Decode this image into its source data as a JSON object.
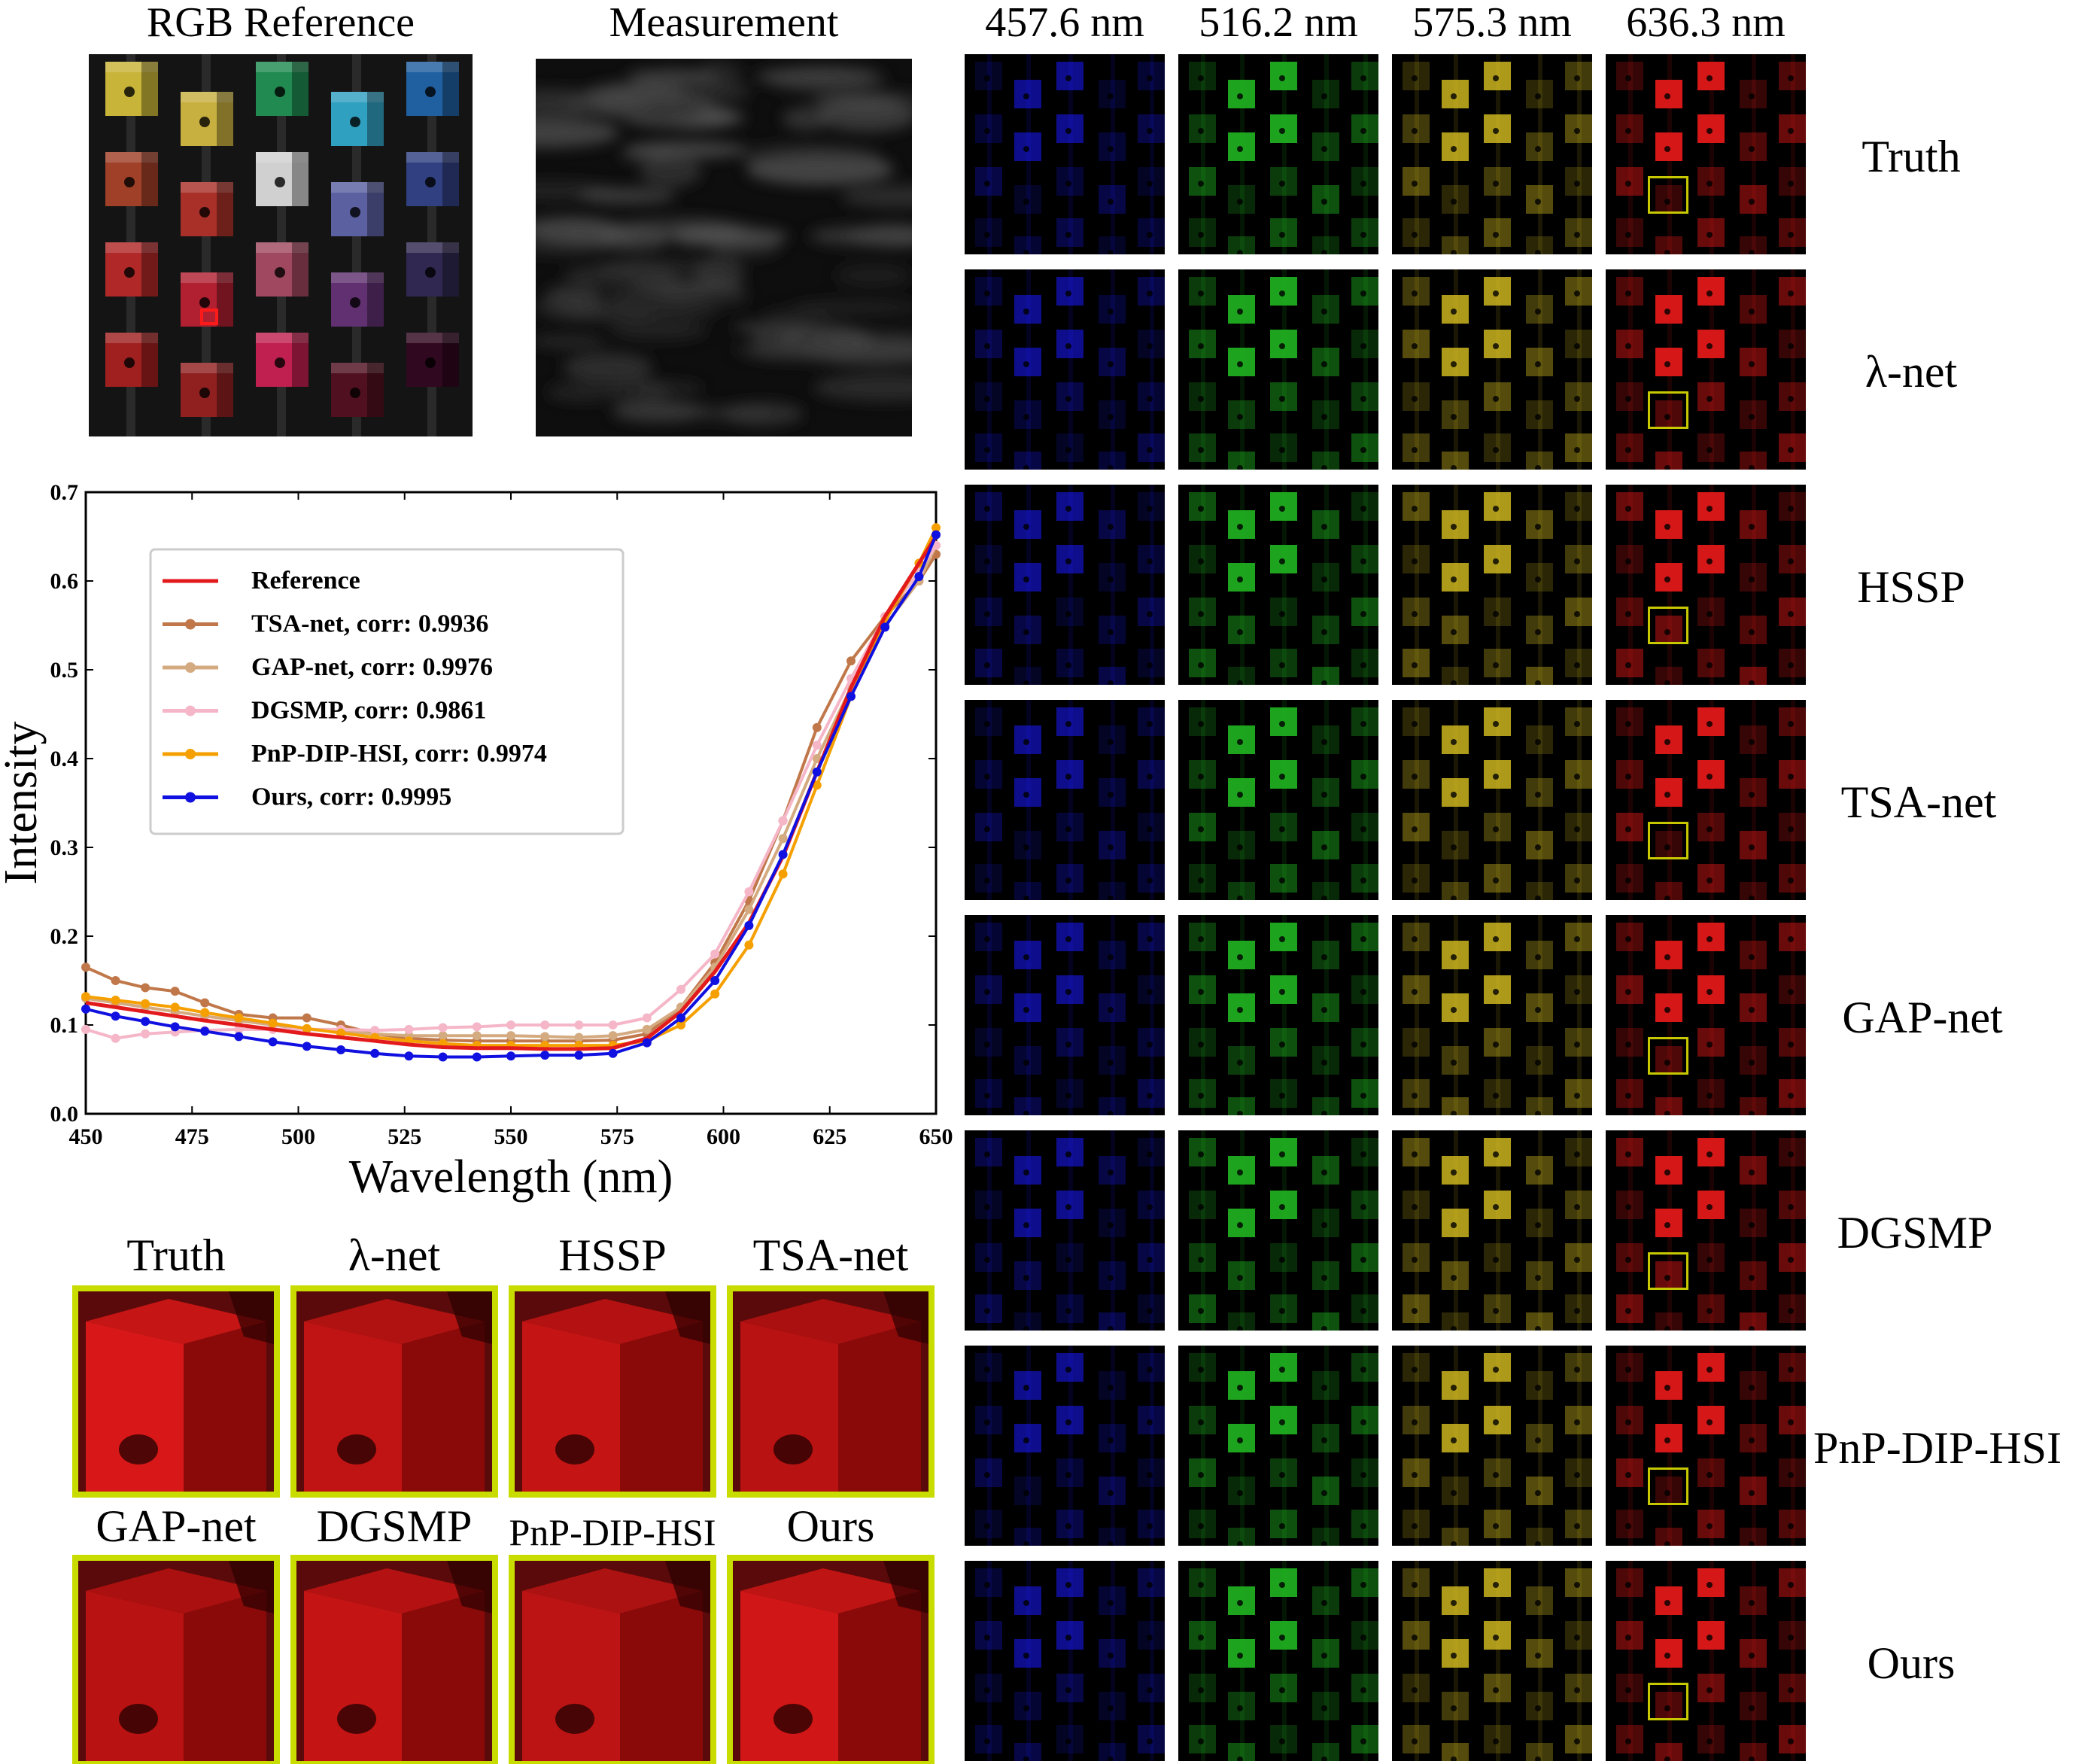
{
  "top_left": {
    "rgb_title": "RGB Reference",
    "measurement_title": "Measurement"
  },
  "wavelength_columns": [
    "457.6 nm",
    "516.2 nm",
    "575.3 nm",
    "636.3 nm"
  ],
  "channel_colors": [
    "#1a1aff",
    "#22c022",
    "#d8c020",
    "#e01818"
  ],
  "methods": [
    "Truth",
    "λ-net",
    "HSSP",
    "TSA-net",
    "GAP-net",
    "DGSMP",
    "PnP-DIP-HSI",
    "Ours"
  ],
  "zoom_titles": [
    "Truth",
    "λ-net",
    "HSSP",
    "TSA-net",
    "GAP-net",
    "DGSMP",
    "PnP-DIP-HSI",
    "Ours"
  ],
  "chart_data": {
    "type": "line",
    "xlabel": "Wavelength (nm)",
    "ylabel": "Intensity",
    "xlim": [
      450,
      650
    ],
    "ylim": [
      0.0,
      0.7
    ],
    "xticks": [
      "450",
      "475",
      "500",
      "525",
      "550",
      "575",
      "600",
      "625",
      "650"
    ],
    "yticks": [
      "0.0",
      "0.1",
      "0.2",
      "0.3",
      "0.4",
      "0.5",
      "0.6",
      "0.7"
    ],
    "grid": false,
    "legend_position": "upper-left",
    "x": [
      450,
      457,
      464,
      471,
      478,
      486,
      494,
      502,
      510,
      518,
      526,
      534,
      542,
      550,
      558,
      566,
      574,
      582,
      590,
      598,
      606,
      614,
      622,
      630,
      638,
      646,
      650
    ],
    "series": [
      {
        "name": "Reference",
        "color": "#e31a1c",
        "markers": false,
        "values": [
          0.125,
          0.12,
          0.115,
          0.11,
          0.105,
          0.1,
          0.095,
          0.09,
          0.086,
          0.082,
          0.078,
          0.075,
          0.074,
          0.074,
          0.073,
          0.073,
          0.074,
          0.085,
          0.115,
          0.16,
          0.215,
          0.29,
          0.385,
          0.48,
          0.56,
          0.62,
          0.65
        ]
      },
      {
        "name": "TSA-net, corr: 0.9936",
        "color": "#c0784a",
        "markers": true,
        "values": [
          0.165,
          0.15,
          0.142,
          0.138,
          0.125,
          0.112,
          0.108,
          0.108,
          0.1,
          0.09,
          0.085,
          0.083,
          0.082,
          0.082,
          0.082,
          0.082,
          0.083,
          0.09,
          0.12,
          0.17,
          0.24,
          0.33,
          0.435,
          0.51,
          0.56,
          0.6,
          0.63
        ]
      },
      {
        "name": "GAP-net, corr: 0.9976",
        "color": "#d4aa80",
        "markers": true,
        "values": [
          0.13,
          0.125,
          0.12,
          0.115,
          0.11,
          0.105,
          0.1,
          0.095,
          0.093,
          0.09,
          0.088,
          0.088,
          0.088,
          0.088,
          0.087,
          0.086,
          0.088,
          0.095,
          0.12,
          0.165,
          0.23,
          0.31,
          0.4,
          0.48,
          0.55,
          0.6,
          0.64
        ]
      },
      {
        "name": "DGSMP, corr: 0.9861",
        "color": "#f5b6c8",
        "markers": true,
        "values": [
          0.095,
          0.085,
          0.09,
          0.092,
          0.094,
          0.095,
          0.095,
          0.095,
          0.095,
          0.094,
          0.095,
          0.097,
          0.098,
          0.1,
          0.1,
          0.1,
          0.1,
          0.108,
          0.14,
          0.18,
          0.25,
          0.33,
          0.415,
          0.49,
          0.56,
          0.61,
          0.64
        ]
      },
      {
        "name": "PnP-DIP-HSI, corr: 0.9974",
        "color": "#f5a000",
        "markers": true,
        "values": [
          0.132,
          0.128,
          0.124,
          0.12,
          0.114,
          0.108,
          0.102,
          0.096,
          0.091,
          0.086,
          0.082,
          0.079,
          0.077,
          0.077,
          0.077,
          0.077,
          0.077,
          0.082,
          0.1,
          0.135,
          0.19,
          0.27,
          0.37,
          0.47,
          0.555,
          0.62,
          0.66
        ]
      },
      {
        "name": "Ours, corr: 0.9995",
        "color": "#1010e0",
        "markers": true,
        "values": [
          0.118,
          0.11,
          0.104,
          0.098,
          0.093,
          0.087,
          0.081,
          0.076,
          0.072,
          0.068,
          0.065,
          0.064,
          0.064,
          0.065,
          0.066,
          0.066,
          0.068,
          0.08,
          0.108,
          0.15,
          0.212,
          0.292,
          0.385,
          0.47,
          0.548,
          0.605,
          0.652
        ]
      }
    ]
  }
}
